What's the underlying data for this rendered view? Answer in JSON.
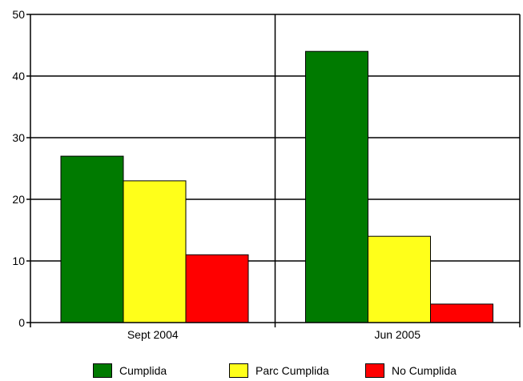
{
  "chart_data": {
    "type": "bar",
    "categories": [
      "Sept 2004",
      "Jun 2005"
    ],
    "series": [
      {
        "name": "Cumplida",
        "values": [
          27,
          44
        ],
        "color": "#007a00"
      },
      {
        "name": "Parc Cumplida",
        "values": [
          23,
          14
        ],
        "color": "#ffff1a"
      },
      {
        "name": "No Cumplida",
        "values": [
          11,
          3
        ],
        "color": "#ff0000"
      }
    ],
    "ylim": [
      0,
      50
    ],
    "yticks": [
      "0",
      "10",
      "20",
      "30",
      "40",
      "50"
    ],
    "grid": true,
    "legend_position": "bottom",
    "title": "",
    "xlabel": "",
    "ylabel": ""
  }
}
